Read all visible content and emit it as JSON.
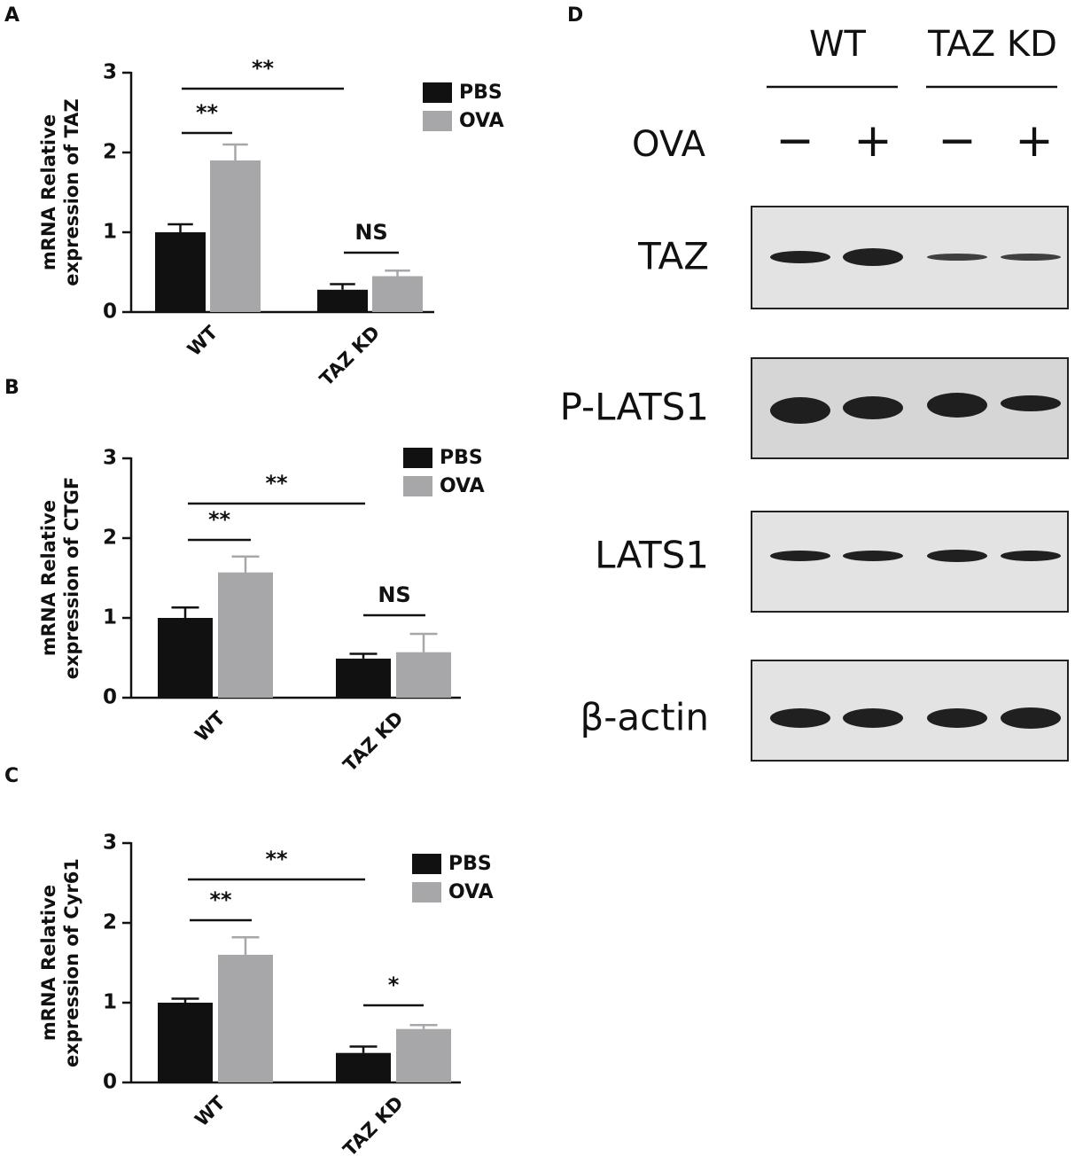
{
  "chart_data": [
    {
      "type": "bar",
      "panel": "A",
      "ylabel": "mRNA Relative expression of TAZ",
      "categories": [
        "WT",
        "TAZ KD"
      ],
      "series": [
        {
          "name": "PBS",
          "color": "#111111",
          "values": [
            1.0,
            0.28
          ],
          "errors": [
            0.1,
            0.07
          ]
        },
        {
          "name": "OVA",
          "color": "#a7a7aa",
          "values": [
            1.9,
            0.45
          ],
          "errors": [
            0.2,
            0.07
          ]
        }
      ],
      "ylim": [
        0,
        3
      ],
      "yticks": [
        0,
        1,
        2,
        3
      ],
      "annotations": [
        "**",
        "**",
        "NS"
      ]
    },
    {
      "type": "bar",
      "panel": "B",
      "ylabel": "mRNA Relative expression of CTGF",
      "categories": [
        "WT",
        "TAZ KD"
      ],
      "series": [
        {
          "name": "PBS",
          "color": "#111111",
          "values": [
            1.0,
            0.49
          ],
          "errors": [
            0.13,
            0.06
          ]
        },
        {
          "name": "OVA",
          "color": "#a7a7aa",
          "values": [
            1.57,
            0.57
          ],
          "errors": [
            0.2,
            0.23
          ]
        }
      ],
      "ylim": [
        0,
        3
      ],
      "yticks": [
        0,
        1,
        2,
        3
      ],
      "annotations": [
        "**",
        "**",
        "NS"
      ]
    },
    {
      "type": "bar",
      "panel": "C",
      "ylabel": "mRNA Relative expression of Cyr61",
      "categories": [
        "WT",
        "TAZ KD"
      ],
      "series": [
        {
          "name": "PBS",
          "color": "#111111",
          "values": [
            1.0,
            0.37
          ],
          "errors": [
            0.05,
            0.08
          ]
        },
        {
          "name": "OVA",
          "color": "#a7a7aa",
          "values": [
            1.6,
            0.67
          ],
          "errors": [
            0.22,
            0.05
          ]
        }
      ],
      "ylim": [
        0,
        3
      ],
      "yticks": [
        0,
        1,
        2,
        3
      ],
      "annotations": [
        "**",
        "**",
        "*"
      ]
    }
  ],
  "blot": {
    "panel": "D",
    "groups": [
      "WT",
      "TAZ KD"
    ],
    "treatment": "OVA",
    "signs": [
      "−",
      "+",
      "−",
      "+"
    ],
    "rows": [
      "TAZ",
      "P-LATS1",
      "LATS1",
      "β-actin"
    ]
  }
}
